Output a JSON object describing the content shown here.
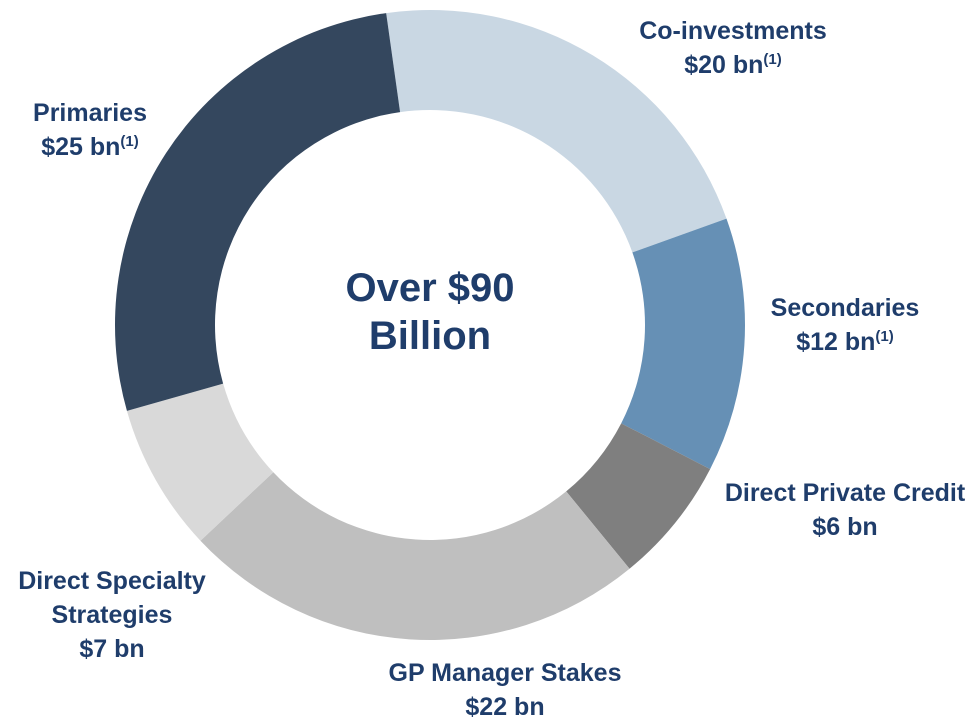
{
  "chart_data": {
    "type": "pie",
    "donut": true,
    "center_label": "Over $90 Billion",
    "categories": [
      "Co-investments",
      "Secondaries",
      "Direct Private Credit",
      "GP Manager Stakes",
      "Direct Specialty Strategies",
      "Primaries"
    ],
    "values": [
      20,
      12,
      6,
      22,
      7,
      25
    ],
    "value_labels": [
      "$20 bn",
      "$12 bn",
      "$6 bn",
      "$22 bn",
      "$7 bn",
      "$25 bn"
    ],
    "footnotes": [
      "(1)",
      "(1)",
      null,
      null,
      null,
      "(1)"
    ],
    "colors": [
      "#c9d7e3",
      "#6690b5",
      "#7f7f7f",
      "#bfbfbf",
      "#d9d9d9",
      "#34475e"
    ]
  }
}
